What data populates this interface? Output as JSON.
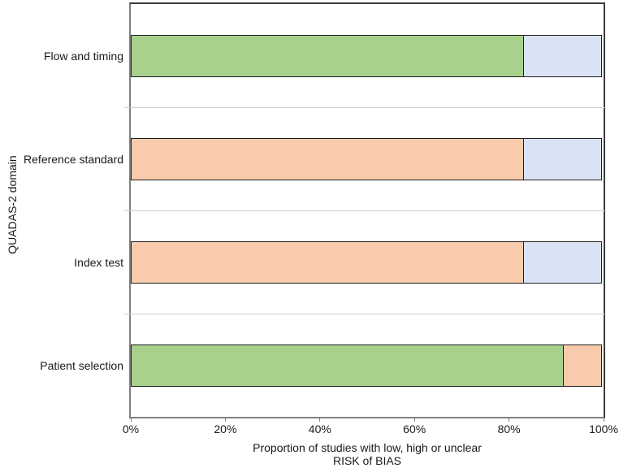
{
  "chart_data": {
    "type": "stacked_bar_horizontal",
    "title": "",
    "ylabel": "QUADAS-2 domain",
    "xlabel_line1": "Proportion of studies with low, high or unclear",
    "xlabel_line2": "RISK of BIAS",
    "x_ticks": [
      "0%",
      "20%",
      "40%",
      "60%",
      "80%",
      "100%"
    ],
    "xlim": [
      0,
      100
    ],
    "grid": "between-category separator lines only",
    "legend": "none",
    "categories": [
      "Flow and timing",
      "Reference standard",
      "Index test",
      "Patient selection"
    ],
    "bars": [
      {
        "category": "Flow and timing",
        "segments": [
          {
            "color_name": "green",
            "color": "#A9D18E",
            "value": 83.3
          },
          {
            "color_name": "light-blue",
            "color": "#DAE3F3",
            "value": 16.7
          }
        ]
      },
      {
        "category": "Reference standard",
        "segments": [
          {
            "color_name": "orange",
            "color": "#F8CBAD",
            "value": 83.3
          },
          {
            "color_name": "light-blue",
            "color": "#DAE3F3",
            "value": 16.7
          }
        ]
      },
      {
        "category": "Index test",
        "segments": [
          {
            "color_name": "orange",
            "color": "#F8CBAD",
            "value": 83.3
          },
          {
            "color_name": "light-blue",
            "color": "#DAE3F3",
            "value": 16.7
          }
        ]
      },
      {
        "category": "Patient selection",
        "segments": [
          {
            "color_name": "green",
            "color": "#A9D18E",
            "value": 91.7
          },
          {
            "color_name": "orange",
            "color": "#F8CBAD",
            "value": 8.3
          }
        ]
      }
    ],
    "colors": {
      "bar_border": "#1f1f1f",
      "panel_border_dark": "#3a3a3a",
      "axis_line": "#7f7f7f",
      "gridline": "#cbcbcb",
      "text": "#1a1a1a"
    }
  }
}
